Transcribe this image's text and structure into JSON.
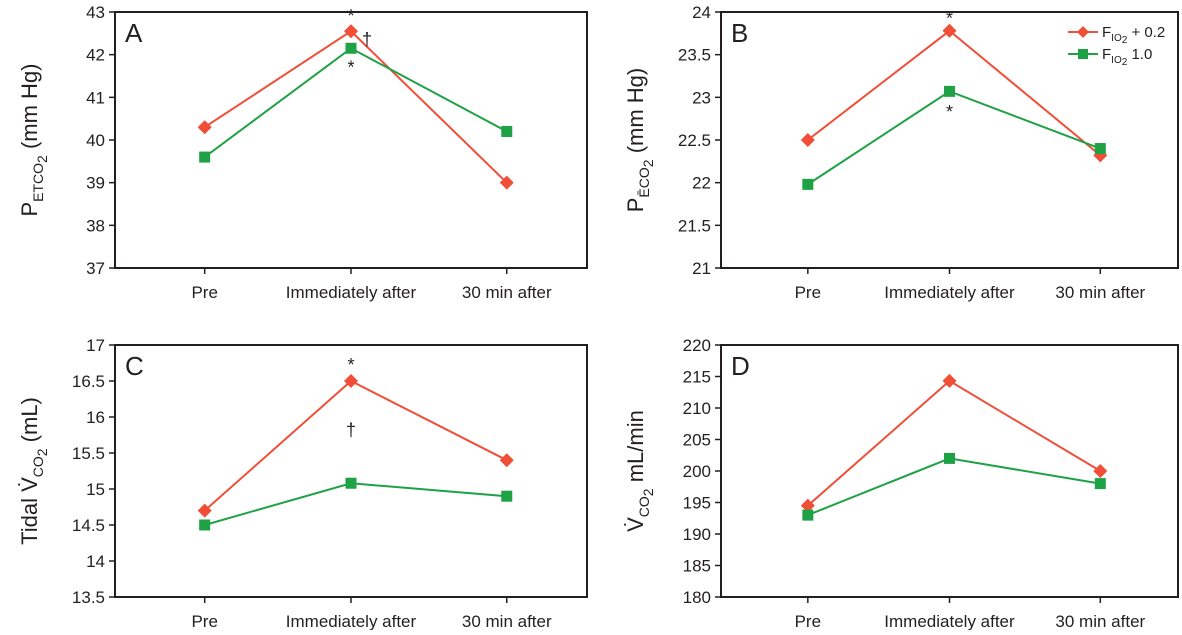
{
  "categories": [
    "Pre",
    "Immediately after",
    "30 min after"
  ],
  "legend": {
    "series": [
      {
        "base": "F",
        "sub": "IO",
        "sub2": "2",
        "suffix": " + 0.2",
        "color": "#f04e37"
      },
      {
        "base": "F",
        "sub": "IO",
        "sub2": "2",
        "suffix": " 1.0",
        "color": "#1fa245"
      }
    ]
  },
  "chart_data": [
    {
      "panel": "A",
      "type": "line",
      "ylabel": {
        "base": "P",
        "sub": "ETCO",
        "sub2": "2",
        "suffix": " (mm Hg)"
      },
      "ylim": [
        37,
        43
      ],
      "yticks": [
        "37",
        "38",
        "39",
        "40",
        "41",
        "42",
        "43"
      ],
      "categories": [
        "Pre",
        "Immediately after",
        "30 min after"
      ],
      "series": [
        {
          "marker": "diamond",
          "color": "#f04e37",
          "values": [
            40.3,
            42.55,
            39.0
          ]
        },
        {
          "marker": "square",
          "color": "#1fa245",
          "values": [
            39.6,
            42.15,
            40.2
          ]
        }
      ],
      "annotations": [
        {
          "text": "*",
          "category": 1,
          "y": 42.95
        },
        {
          "text": "†",
          "category": 1,
          "y": 42.4,
          "dx": 16
        },
        {
          "text": "*",
          "category": 1,
          "y": 41.75
        }
      ]
    },
    {
      "panel": "B",
      "type": "line",
      "ylabel": {
        "base": "P",
        "sub": "ĒCO",
        "sub2": "2",
        "suffix": " (mm Hg)"
      },
      "ylim": [
        21,
        24
      ],
      "yticks": [
        "21",
        "21.5",
        "22",
        "22.5",
        "23",
        "23.5",
        "24"
      ],
      "categories": [
        "Pre",
        "Immediately after",
        "30 min after"
      ],
      "series": [
        {
          "marker": "diamond",
          "color": "#f04e37",
          "values": [
            22.5,
            23.78,
            22.32
          ]
        },
        {
          "marker": "square",
          "color": "#1fa245",
          "values": [
            21.98,
            23.07,
            22.4
          ]
        }
      ],
      "annotations": [
        {
          "text": "*",
          "category": 1,
          "y": 23.95
        },
        {
          "text": "*",
          "category": 1,
          "y": 22.85
        }
      ]
    },
    {
      "panel": "C",
      "type": "line",
      "ylabel": {
        "base": "Tidal V̇",
        "sub": "CO",
        "sub2": "2",
        "suffix": " (mL)"
      },
      "ylim": [
        13.5,
        17
      ],
      "yticks": [
        "13.5",
        "14",
        "14.5",
        "15",
        "15.5",
        "16",
        "16.5",
        "17"
      ],
      "categories": [
        "Pre",
        "Immediately after",
        "30 min after"
      ],
      "series": [
        {
          "marker": "diamond",
          "color": "#f04e37",
          "values": [
            14.7,
            16.5,
            15.4
          ]
        },
        {
          "marker": "square",
          "color": "#1fa245",
          "values": [
            14.5,
            15.08,
            14.9
          ]
        }
      ],
      "annotations": [
        {
          "text": "*",
          "category": 1,
          "y": 16.75
        },
        {
          "text": "†",
          "category": 1,
          "y": 15.85
        }
      ]
    },
    {
      "panel": "D",
      "type": "line",
      "ylabel": {
        "base": "V̇",
        "sub": "CO",
        "sub2": "2",
        "suffix": " mL/min"
      },
      "ylim": [
        180,
        220
      ],
      "yticks": [
        "180",
        "185",
        "190",
        "195",
        "200",
        "205",
        "210",
        "215",
        "220"
      ],
      "categories": [
        "Pre",
        "Immediately after",
        "30 min after"
      ],
      "series": [
        {
          "marker": "diamond",
          "color": "#f04e37",
          "values": [
            194.5,
            214.3,
            200.0
          ]
        },
        {
          "marker": "square",
          "color": "#1fa245",
          "values": [
            193.0,
            202.0,
            198.0
          ]
        }
      ],
      "annotations": []
    }
  ]
}
